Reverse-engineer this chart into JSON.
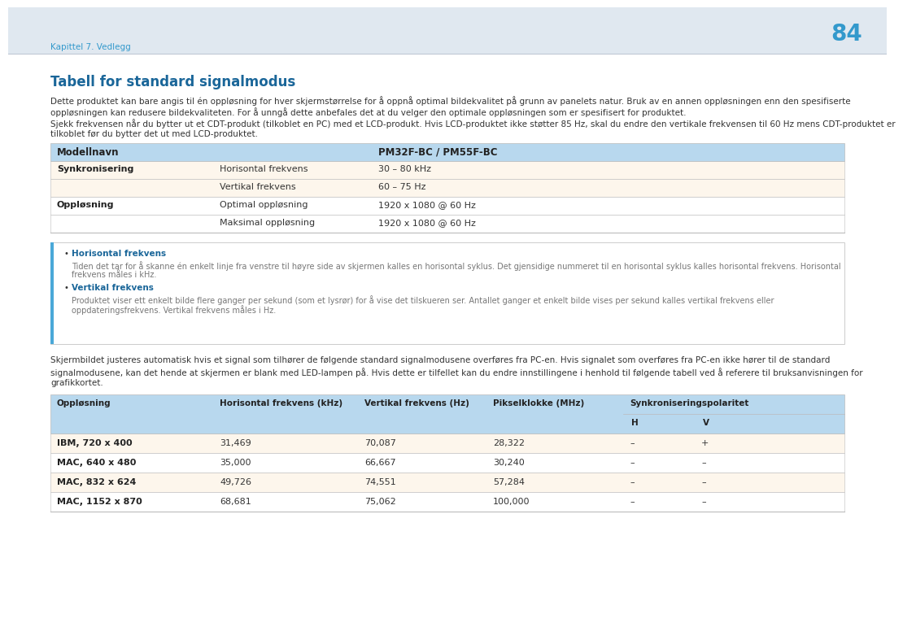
{
  "page_number": "84",
  "chapter_label": "Kapittel 7. Vedlegg",
  "section_title": "Tabell for standard signalmodus",
  "para1_line1": "Dette produktet kan bare angis til én oppløsning for hver skjermstørrelse for å oppnå optimal bildekvalitet på grunn av panelets natur. Bruk av en annen oppløsningen enn den spesifiserte",
  "para1_line2": "oppløsningen kan redusere bildekvaliteten. For å unngå dette anbefales det at du velger den optimale oppløsningen som er spesifisert for produktet.",
  "para2_line1": "Sjekk frekvensen når du bytter ut et CDT-produkt (tilkoblet en PC) med et LCD-produkt. Hvis LCD-produktet ikke støtter 85 Hz, skal du endre den vertikale frekvensen til 60 Hz mens CDT-produktet er",
  "para2_line2": "tilkoblet før du bytter det ut med LCD-produktet.",
  "table1_header": [
    "Modellnavn",
    "",
    "PM32F-BC / PM55F-BC"
  ],
  "table1_rows": [
    [
      "Synkronisering",
      "Horisontal frekvens",
      "30 – 80 kHz"
    ],
    [
      "",
      "Vertikal frekvens",
      "60 – 75 Hz"
    ],
    [
      "Oppløsning",
      "Optimal oppløsning",
      "1920 x 1080 @ 60 Hz"
    ],
    [
      "",
      "Maksimal oppløsning",
      "1920 x 1080 @ 60 Hz"
    ]
  ],
  "note_box_title1": "Horisontal frekvens",
  "note_box_text1_line1": "Tiden det tar for å skanne én enkelt linje fra venstre til høyre side av skjermen kalles en horisontal syklus. Det gjensidige nummeret til en horisontal syklus kalles horisontal frekvens. Horisontal",
  "note_box_text1_line2": "frekvens måles i kHz.",
  "note_box_title2": "Vertikal frekvens",
  "note_box_text2_line1": "Produktet viser ett enkelt bilde flere ganger per sekund (som et lysrør) for å vise det tilskueren ser. Antallet ganger et enkelt bilde vises per sekund kalles vertikal frekvens eller",
  "note_box_text2_line2": "oppdateringsfrekvens. Vertikal frekvens måles i Hz.",
  "para3_line1": "Skjermbildet justeres automatisk hvis et signal som tilhører de følgende standard signalmodusene overføres fra PC-en. Hvis signalet som overføres fra PC-en ikke hører til de standard",
  "para3_line2": "signalmodusene, kan det hende at skjermen er blank med LED-lampen på. Hvis dette er tilfellet kan du endre innstillingene i henhold til følgende tabell ved å referere til bruksanvisningen for",
  "para3_line3": "grafikkortet.",
  "table2_col_labels": [
    "Oppløsning",
    "Horisontal frekvens (kHz)",
    "Vertikal frekvens (Hz)",
    "Pikselklokke (MHz)",
    "Synkroniseringspolaritet"
  ],
  "table2_subheaders": [
    "H",
    "V"
  ],
  "table2_rows": [
    [
      "IBM, 720 x 400",
      "31,469",
      "70,087",
      "28,322",
      "–",
      "+"
    ],
    [
      "MAC, 640 x 480",
      "35,000",
      "66,667",
      "30,240",
      "–",
      "–"
    ],
    [
      "MAC, 832 x 624",
      "49,726",
      "74,551",
      "57,284",
      "–",
      "–"
    ],
    [
      "MAC, 1152 x 870",
      "68,681",
      "75,062",
      "100,000",
      "–",
      "–"
    ]
  ],
  "colors": {
    "page_bg": "#ffffff",
    "header_bg": "#e0e8f0",
    "chapter_text": "#3399cc",
    "page_number": "#3399cc",
    "section_title": "#1a6699",
    "body_text": "#333333",
    "table_header_bg": "#b8d8ee",
    "table_header_text": "#222222",
    "table_row_bg1": "#fdf6ec",
    "table_row_bg2": "#ffffff",
    "table_border": "#bbbbbb",
    "note_box_border_left": "#4aa8d8",
    "note_box_border": "#cccccc",
    "note_box_bg": "#ffffff",
    "note_title_text": "#1a6699",
    "note_body_text": "#777777"
  }
}
